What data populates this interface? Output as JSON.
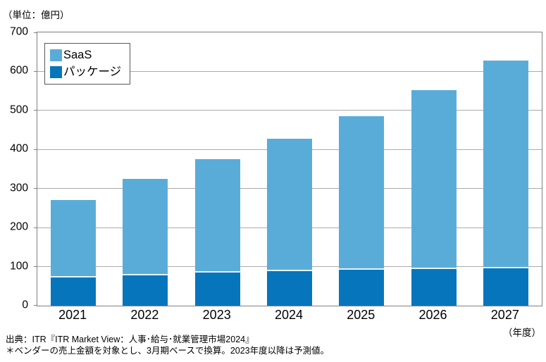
{
  "unit_label": "（単位：億円）",
  "axis_note": "（年度）",
  "footnotes": [
    "出典：ITR『ITR Market View：人事･給与･就業管理市場2024』",
    "＊ベンダーの売上金額を対象とし、3月期ベースで換算。2023年度以降は予測値。"
  ],
  "colors": {
    "saas": "#5aacd8",
    "package": "#0775bc",
    "gridline": "#ababab",
    "plot_border": "#808080",
    "segment_separator": "#e3f2fb"
  },
  "chart_data": {
    "type": "bar",
    "stacked": true,
    "title": "",
    "unit": "億円",
    "xlabel": "年度",
    "ylabel": "",
    "categories": [
      "2021",
      "2022",
      "2023",
      "2024",
      "2025",
      "2026",
      "2027"
    ],
    "series": [
      {
        "name": "パッケージ",
        "color": "#0775bc",
        "values": [
          76,
          82,
          88,
          92,
          95,
          97,
          100
        ]
      },
      {
        "name": "SaaS",
        "color": "#5aacd8",
        "values": [
          194,
          243,
          287,
          335,
          390,
          455,
          528
        ]
      }
    ],
    "totals": [
      270,
      325,
      375,
      427,
      485,
      552,
      628
    ],
    "ylim": [
      0,
      700
    ],
    "ytick_step": 100,
    "grid": true,
    "legend_position": "upper-left-inside"
  }
}
